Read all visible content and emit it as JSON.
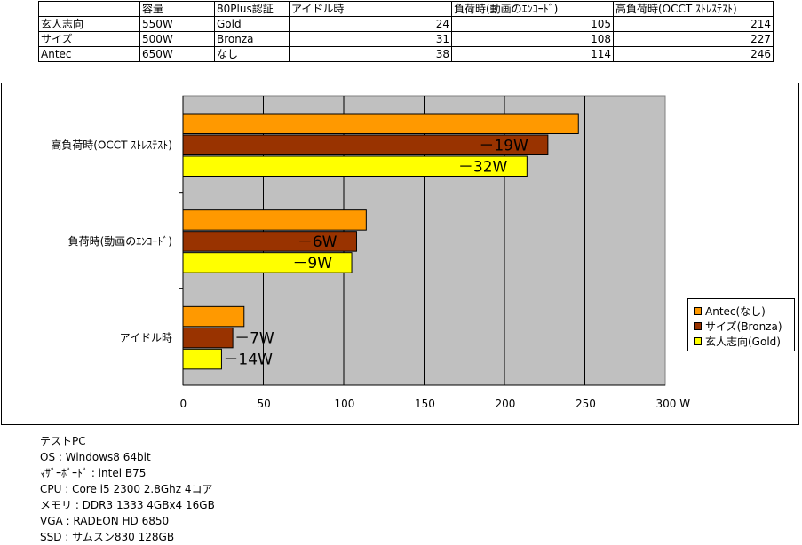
{
  "table": {
    "header": [
      "",
      "容量",
      "80Plus認証",
      "アイドル時",
      "負荷時(動画のｴﾝｺｰﾄﾞ)",
      "高負荷時(OCCT ｽﾄﾚｽﾃｽﾄ)"
    ],
    "rows": [
      [
        "玄人志向",
        "550W",
        "Gold",
        "24",
        "105",
        "214"
      ],
      [
        "サイズ",
        "500W",
        "Bronza",
        "31",
        "108",
        "227"
      ],
      [
        "Antec",
        "650W",
        "なし",
        "38",
        "114",
        "246"
      ]
    ]
  },
  "chart_data": {
    "type": "bar",
    "orientation": "horizontal",
    "categories": [
      "高負荷時(OCCT ｽﾄﾚｽﾃｽﾄ)",
      "負荷時(動画のｴﾝｺｰﾄﾞ)",
      "アイドル時"
    ],
    "series": [
      {
        "name": "Antec(なし)",
        "color": "#FF9900",
        "values": [
          246,
          114,
          38
        ]
      },
      {
        "name": "サイズ(Bronza)",
        "color": "#993300",
        "values": [
          227,
          108,
          31
        ]
      },
      {
        "name": "玄人志向(Gold)",
        "color": "#FFFF00",
        "values": [
          214,
          105,
          24
        ]
      }
    ],
    "annotations": [
      {
        "category": 0,
        "series": 1,
        "text": "－19W"
      },
      {
        "category": 0,
        "series": 2,
        "text": "－32W"
      },
      {
        "category": 1,
        "series": 1,
        "text": "－6W"
      },
      {
        "category": 1,
        "series": 2,
        "text": "－9W"
      },
      {
        "category": 2,
        "series": 1,
        "text": "－7W"
      },
      {
        "category": 2,
        "series": 2,
        "text": "－14W"
      }
    ],
    "xlim": [
      0,
      300
    ],
    "xticks": [
      0,
      50,
      100,
      150,
      200,
      250,
      300
    ],
    "xtick_labels": [
      "0",
      "50",
      "100",
      "150",
      "200",
      "250",
      "300 W"
    ],
    "plot_background": "#C0C0C0",
    "grid": true,
    "legend_position": "right"
  },
  "notes": [
    "テストPC",
    "OS : Windows8 64bit",
    "ﾏｻﾞｰﾎﾞｰﾄﾞ : intel B75",
    "CPU : Core i5 2300 2.8Ghz 4コア",
    "メモリ : DDR3 1333 4GBx4  16GB",
    "VGA : RADEON HD 6850",
    "SSD : サムスン830  128GB"
  ]
}
